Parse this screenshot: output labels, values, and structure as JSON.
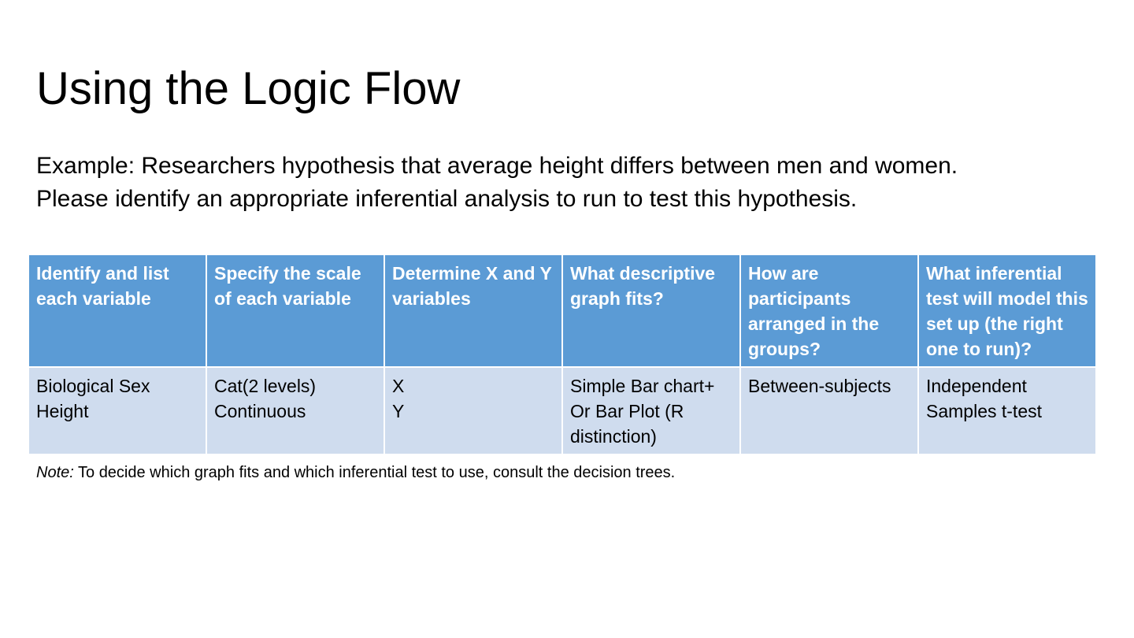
{
  "slide": {
    "title": "Using the Logic Flow",
    "example_line1": "Example:  Researchers hypothesis that average height differs between men and women.",
    "example_line2": "Please identify an appropriate inferential analysis to run to test this hypothesis."
  },
  "table": {
    "headers": [
      "Identify and list each variable",
      "Specify the scale of each variable",
      "Determine X and Y variables",
      "What descriptive graph fits?",
      "How are participants arranged in the groups?",
      "What inferential test will model this set up (the right one to run)?"
    ],
    "row": [
      {
        "lines": [
          "Biological Sex",
          "Height"
        ]
      },
      {
        "lines": [
          "Cat(2 levels)",
          "Continuous"
        ]
      },
      {
        "lines": [
          "X",
          "Y"
        ]
      },
      {
        "lines": [
          "Simple Bar chart+ Or Bar Plot (R distinction)"
        ]
      },
      {
        "lines": [
          "Between-subjects"
        ]
      },
      {
        "lines": [
          "Independent Samples t-test"
        ]
      }
    ]
  },
  "note": {
    "label": "Note:",
    "text": " To decide which graph fits and which inferential test to use, consult the decision trees."
  },
  "colors": {
    "header_bg": "#5b9bd5",
    "body_bg": "#cfdcee"
  }
}
